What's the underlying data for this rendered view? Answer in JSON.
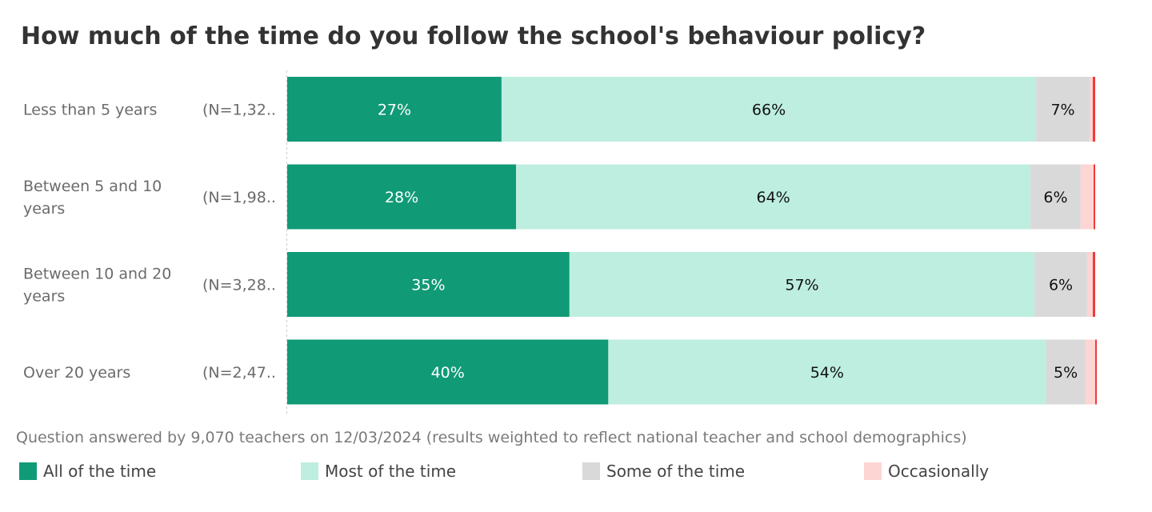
{
  "chart_data": {
    "type": "bar",
    "orientation": "horizontal",
    "stacked": true,
    "title": "How much of the time do you follow the school's behaviour policy?",
    "note": "Question answered by 9,070 teachers on 12/03/2024 (results weighted to reflect national teacher and school demographics)",
    "categories": [
      "Less than 5 years",
      "Between 5 and 10 years",
      "Between 10 and 20 years",
      "Over 20 years"
    ],
    "category_lines": [
      [
        "Less than 5 years"
      ],
      [
        "Between 5 and 10",
        "years"
      ],
      [
        "Between 10 and 20",
        "years"
      ],
      [
        "Over 20 years"
      ]
    ],
    "n_labels": [
      "(N=1,32..",
      "(N=1,98..",
      "(N=3,28..",
      "(N=2,47.."
    ],
    "xlim": [
      0,
      100
    ],
    "legend_position": "bottom",
    "series": [
      {
        "name": "All of the time",
        "color": "#109a76",
        "label_color": "#ffffff",
        "values": [
          26.5,
          28.3,
          34.9,
          39.7
        ],
        "labels": [
          "27%",
          "28%",
          "35%",
          "40%"
        ]
      },
      {
        "name": "Most of the time",
        "color": "#bdeee0",
        "label_color": "#111111",
        "values": [
          66.1,
          63.6,
          57.5,
          54.1
        ],
        "labels": [
          "66%",
          "64%",
          "57%",
          "54%"
        ]
      },
      {
        "name": "Some of the time",
        "color": "#d9d9d9",
        "label_color": "#111111",
        "values": [
          6.6,
          6.2,
          6.5,
          4.9
        ],
        "labels": [
          "7%",
          "6%",
          "6%",
          "5%"
        ]
      },
      {
        "name": "Occasionally",
        "color": "#fdd5d3",
        "label_color": "#111111",
        "values": [
          0.4,
          1.6,
          0.7,
          1.2
        ],
        "labels": [
          "",
          "",
          "",
          ""
        ]
      }
    ],
    "unlabeled_segment": {
      "color": "#ee3b3b",
      "values": [
        0.3,
        0.2,
        0.3,
        0.2
      ]
    }
  }
}
